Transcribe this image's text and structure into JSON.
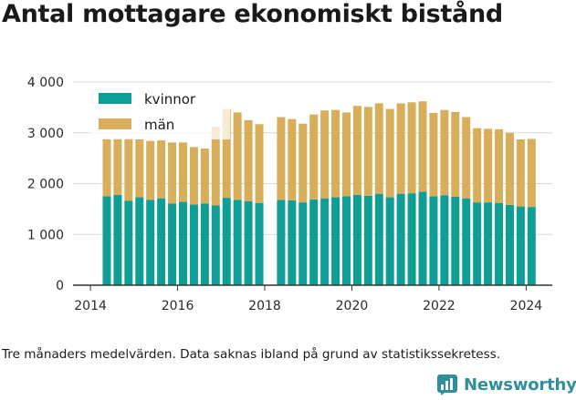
{
  "title": "Antal mottagare ekonomiskt bistånd",
  "caption": "Tre månaders medelvärden. Data saknas ibland på grund av statistikssekretess.",
  "brand": {
    "name": "Newsworthy",
    "icon": "newsworthy-logo-icon",
    "color": "#2f8f9d"
  },
  "colors": {
    "kvinnor": "#0e9e96",
    "man": "#d9ae5a",
    "axis": "#333333",
    "grid": "#d8d8d8"
  },
  "chart_data": {
    "type": "bar",
    "stacked": true,
    "title": "Antal mottagare ekonomiskt bistånd",
    "xlabel": "",
    "ylabel": "",
    "ylim": [
      0,
      4000
    ],
    "xlim": [
      2013.6,
      2024.6
    ],
    "yticks": [
      0,
      1000,
      2000,
      3000,
      4000
    ],
    "ytick_labels": [
      "0",
      "1 000",
      "2 000",
      "3 000",
      "4 000"
    ],
    "xticks": [
      2014,
      2016,
      2018,
      2020,
      2022,
      2024
    ],
    "xtick_labels": [
      "2014",
      "2016",
      "2018",
      "2020",
      "2022",
      "2024"
    ],
    "grid": "horizontal",
    "legend": "top-left",
    "x": [
      2014.375,
      2014.625,
      2014.875,
      2015.125,
      2015.375,
      2015.625,
      2015.875,
      2016.125,
      2016.375,
      2016.625,
      2016.875,
      2017.125,
      2017.375,
      2017.625,
      2017.875,
      2018.375,
      2018.625,
      2018.875,
      2019.125,
      2019.375,
      2019.625,
      2019.875,
      2020.125,
      2020.375,
      2020.625,
      2020.875,
      2021.125,
      2021.375,
      2021.625,
      2021.875,
      2022.125,
      2022.375,
      2022.625,
      2022.875,
      2023.125,
      2023.375,
      2023.625,
      2023.875,
      2024.125
    ],
    "series": [
      {
        "name": "kvinnor",
        "values": [
          1750,
          1780,
          1660,
          1730,
          1680,
          1710,
          1610,
          1640,
          1590,
          1610,
          1570,
          1720,
          1680,
          1650,
          1620,
          1680,
          1670,
          1630,
          1690,
          1710,
          1730,
          1750,
          1780,
          1760,
          1800,
          1730,
          1800,
          1810,
          1840,
          1750,
          1770,
          1740,
          1710,
          1630,
          1630,
          1620,
          1580,
          1550,
          1540
        ]
      },
      {
        "name": "män",
        "values": [
          1130,
          1110,
          1230,
          1140,
          1160,
          1140,
          1200,
          1170,
          1130,
          1080,
          1550,
          1750,
          1720,
          1600,
          1550,
          1630,
          1600,
          1550,
          1670,
          1730,
          1720,
          1650,
          1750,
          1750,
          1780,
          1740,
          1780,
          1790,
          1780,
          1640,
          1680,
          1670,
          1600,
          1460,
          1450,
          1450,
          1420,
          1320,
          1340
        ]
      }
    ]
  },
  "legend_items": [
    {
      "key": "kvinnor",
      "label": "kvinnor"
    },
    {
      "key": "man",
      "label": "män"
    }
  ]
}
